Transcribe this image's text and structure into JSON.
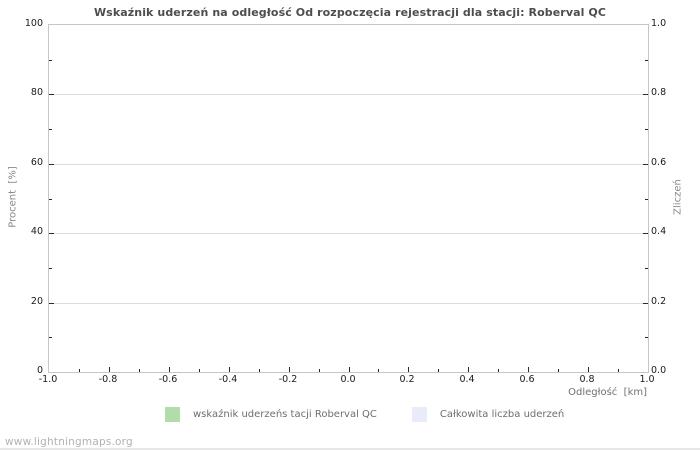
{
  "chart_data": {
    "type": "line",
    "title": "Wskaźnik uderzeń na odległość Od rozpoczęcia rejestracji dla stacji: Roberval QC",
    "xlabel": "Odległość  [km]",
    "ylabel_left": "Procent  [%]",
    "ylabel_right": "Zliczeń",
    "xlim": [
      -1.0,
      1.0
    ],
    "ylim_left": [
      0,
      100
    ],
    "ylim_right": [
      0.0,
      1.0
    ],
    "x_ticks": [
      "-1.0",
      "-0.8",
      "-0.6",
      "-0.4",
      "-0.2",
      "0.0",
      "0.2",
      "0.4",
      "0.6",
      "0.8",
      "1.0"
    ],
    "y_ticks_left": [
      "0",
      "20",
      "40",
      "60",
      "80",
      "100"
    ],
    "y_ticks_right": [
      "0.0",
      "0.2",
      "0.4",
      "0.6",
      "0.8",
      "1.0"
    ],
    "grid": true,
    "legend_position": "bottom",
    "series": [
      {
        "name": "wskaźnik uderzeńs tacji Roberval QC",
        "color": "#b3dcab",
        "values": []
      },
      {
        "name": "Całkowita liczba uderzeń",
        "color": "#e9ecf8",
        "values": []
      }
    ]
  },
  "watermark": "www.lightningmaps.org",
  "colors": {
    "grid": "#dcdcdc",
    "plot_border": "#c6c6c6",
    "title_text": "#4d4d4d",
    "axis_title_text": "#8a8a8a",
    "tick_text": "#1a1a1a",
    "legend_text": "#6e6e6e",
    "watermark_text": "#b2b2b2"
  }
}
